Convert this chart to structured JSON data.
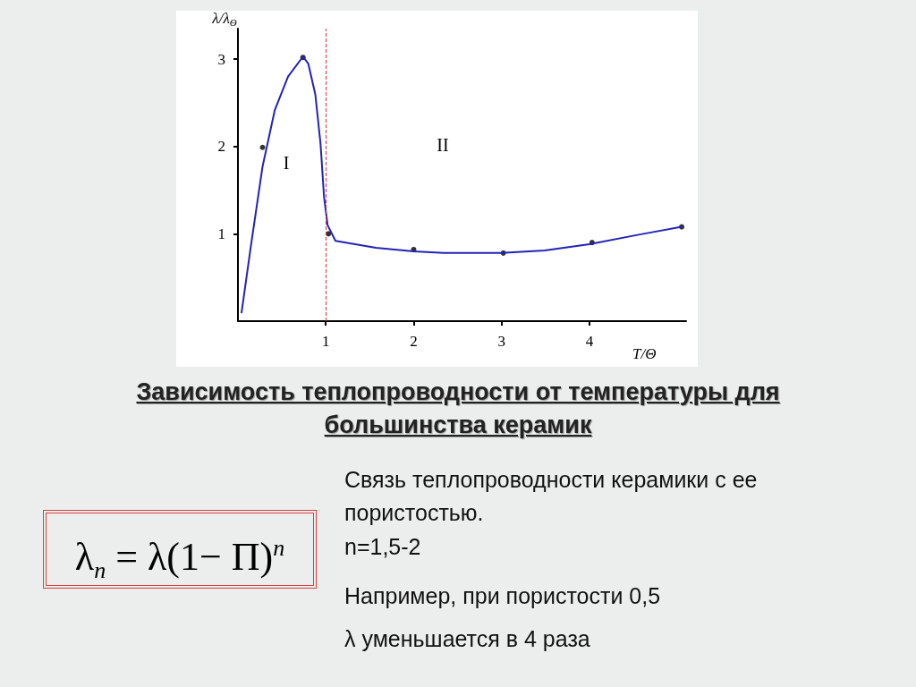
{
  "chart_data": {
    "type": "line",
    "title": "Зависимость теплопроводности от температуры для большинства керамик",
    "xlabel": "T/Θ",
    "ylabel": "λ/λ$_{Θ}$",
    "xlim": [
      0,
      5.1
    ],
    "xticks": [
      1,
      2,
      3,
      4
    ],
    "ylim": [
      0,
      3.35
    ],
    "yticks": [
      1,
      2,
      3
    ],
    "grid": false,
    "marker": "none",
    "line_style": "solid",
    "series": [
      {
        "color": "#2323b8",
        "x": [
          0.04,
          0.15,
          0.28,
          0.42,
          0.57,
          0.74,
          0.8,
          0.88,
          0.94,
          0.98,
          1.02,
          1.11,
          1.57,
          2.0,
          2.34,
          3.0,
          3.49,
          4.0,
          4.56,
          5.05
        ],
        "values": [
          0.09,
          0.88,
          1.77,
          2.42,
          2.8,
          3.03,
          2.95,
          2.6,
          2.03,
          1.42,
          1.1,
          0.92,
          0.84,
          0.8,
          0.78,
          0.78,
          0.81,
          0.88,
          0.99,
          1.08
        ]
      },
      {
        "type": "scatter",
        "marker": "circle",
        "color": "#000000",
        "x": [
          0.28,
          0.74,
          1.03,
          2.0,
          3.02,
          4.03,
          5.05
        ],
        "values": [
          1.99,
          3.02,
          1.0,
          0.82,
          0.78,
          0.9,
          1.08
        ]
      }
    ],
    "ref_lines": [
      {
        "axis": "x",
        "value": 1,
        "color": "#e03030",
        "line_style": "dashed"
      }
    ],
    "annotations": [
      "I",
      "II",
      "λ$_{n}$ = λ(1− Π)$^{n}$",
      "Связь теплопроводности керамики с ее пористостью.",
      "n=1,5-2",
      "Например, при  пористости 0,5",
      "λ уменьшается в 4 раза"
    ]
  }
}
